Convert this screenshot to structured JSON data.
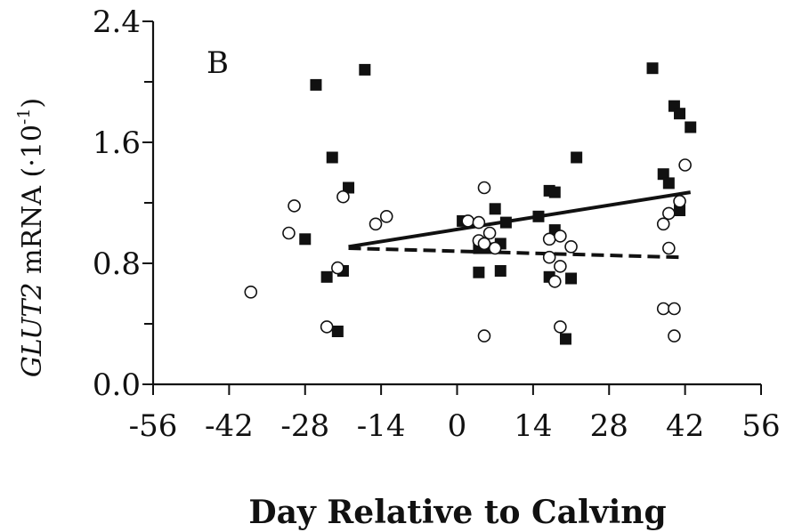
{
  "chart_data": {
    "type": "scatter",
    "panel_label": "B",
    "ylabel_gene": "GLUT2",
    "ylabel_rest": " mRNA (·10",
    "ylabel_sup": "-1",
    "ylabel_close": ")",
    "xlabel": "Day Relative to Calving",
    "xlim": [
      -56,
      56
    ],
    "ylim": [
      0.0,
      2.4
    ],
    "x_ticks": [
      -56,
      -42,
      -28,
      -14,
      0,
      14,
      28,
      42,
      56
    ],
    "x_tick_labels": [
      "-56",
      "-42",
      "-28",
      "-14",
      "0",
      "14",
      "28",
      "42",
      "56"
    ],
    "y_ticks": [
      0.0,
      0.8,
      1.6,
      2.4
    ],
    "y_tick_labels": [
      "0.0",
      "0.8",
      "1.6",
      "2.4"
    ],
    "y_minor_ticks": [
      0.4,
      1.2,
      2.0
    ],
    "series": [
      {
        "marker": "filled-square",
        "color": "#111111",
        "points": [
          [
            -26,
            1.98
          ],
          [
            -17,
            2.08
          ],
          [
            -23,
            1.5
          ],
          [
            -20,
            1.3
          ],
          [
            -28,
            0.96
          ],
          [
            -24,
            0.71
          ],
          [
            -21,
            0.75
          ],
          [
            -22,
            0.35
          ],
          [
            1,
            1.08
          ],
          [
            7,
            1.16
          ],
          [
            9,
            1.07
          ],
          [
            4,
            0.9
          ],
          [
            6,
            0.9
          ],
          [
            8,
            0.93
          ],
          [
            4,
            0.74
          ],
          [
            8,
            0.75
          ],
          [
            15,
            1.11
          ],
          [
            17,
            1.28
          ],
          [
            18,
            1.27
          ],
          [
            22,
            1.5
          ],
          [
            18,
            1.02
          ],
          [
            17,
            0.71
          ],
          [
            21,
            0.7
          ],
          [
            20,
            0.3
          ],
          [
            36,
            2.09
          ],
          [
            40,
            1.84
          ],
          [
            41,
            1.79
          ],
          [
            43,
            1.7
          ],
          [
            38,
            1.39
          ],
          [
            39,
            1.33
          ],
          [
            41,
            1.15
          ]
        ],
        "trend": {
          "style": "solid",
          "x": [
            -20,
            43
          ],
          "y": [
            0.91,
            1.27
          ]
        }
      },
      {
        "marker": "open-circle",
        "color": "#111111",
        "points": [
          [
            -38,
            0.61
          ],
          [
            -30,
            1.18
          ],
          [
            -31,
            1.0
          ],
          [
            -21,
            1.24
          ],
          [
            -22,
            0.77
          ],
          [
            -24,
            0.38
          ],
          [
            -15,
            1.06
          ],
          [
            -13,
            1.11
          ],
          [
            5,
            1.3
          ],
          [
            2,
            1.08
          ],
          [
            4,
            1.07
          ],
          [
            6,
            1.0
          ],
          [
            4,
            0.95
          ],
          [
            5,
            0.93
          ],
          [
            7,
            0.9
          ],
          [
            5,
            0.32
          ],
          [
            17,
            0.96
          ],
          [
            19,
            0.98
          ],
          [
            21,
            0.91
          ],
          [
            17,
            0.84
          ],
          [
            19,
            0.78
          ],
          [
            18,
            0.68
          ],
          [
            19,
            0.38
          ],
          [
            42,
            1.45
          ],
          [
            41,
            1.21
          ],
          [
            39,
            1.13
          ],
          [
            38,
            1.06
          ],
          [
            39,
            0.9
          ],
          [
            38,
            0.5
          ],
          [
            40,
            0.5
          ],
          [
            40,
            0.32
          ]
        ],
        "trend": {
          "style": "dashed",
          "x": [
            -20,
            41
          ],
          "y": [
            0.9,
            0.84
          ]
        }
      }
    ]
  }
}
